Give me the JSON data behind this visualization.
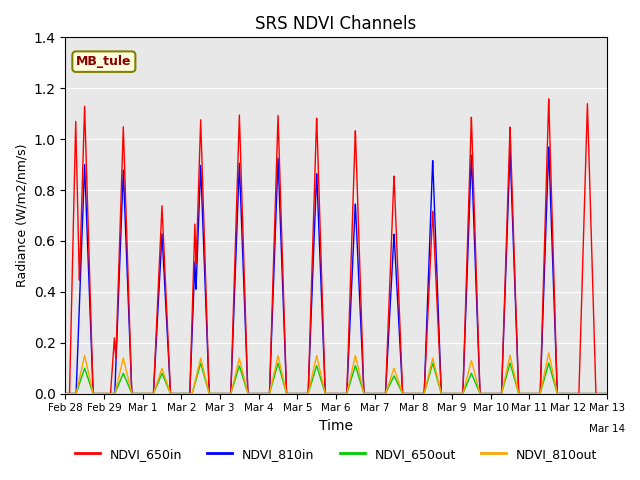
{
  "title": "SRS NDVI Channels",
  "xlabel": "Time",
  "ylabel": "Radiance (W/m2/nm/s)",
  "annotation": "MB_tule",
  "ylim": [
    0,
    1.4
  ],
  "colors": {
    "NDVI_650in": "#FF0000",
    "NDVI_810in": "#0000FF",
    "NDVI_650out": "#00CC00",
    "NDVI_810out": "#FFA500"
  },
  "legend_labels": [
    "NDVI_650in",
    "NDVI_810in",
    "NDVI_650out",
    "NDVI_810out"
  ],
  "background_color": "#E8E8E8",
  "xtick_labels": [
    "Feb 28",
    "Feb 29",
    "Mar 1",
    "Mar 2",
    "Mar 3",
    "Mar 4",
    "Mar 5",
    "Mar 6",
    "Mar 7",
    "Mar 8",
    "Mar 9",
    "Mar 10",
    "Mar 11",
    "Mar 12",
    "Mar 13",
    "Mar 14"
  ],
  "day_peaks_650in": [
    1.13,
    1.05,
    0.74,
    1.08,
    1.1,
    1.1,
    1.09,
    1.04,
    0.86,
    0.72,
    1.09,
    1.05,
    1.16,
    1.14
  ],
  "day_peaks_810in": [
    0.9,
    0.88,
    0.63,
    0.9,
    0.91,
    0.93,
    0.87,
    0.75,
    0.63,
    0.92,
    0.94,
    0.96,
    0.97
  ],
  "day_peaks_650out": [
    0.1,
    0.08,
    0.08,
    0.12,
    0.11,
    0.12,
    0.11,
    0.11,
    0.07,
    0.12,
    0.08,
    0.12,
    0.12
  ],
  "day_peaks_810out": [
    0.15,
    0.14,
    0.1,
    0.14,
    0.14,
    0.15,
    0.15,
    0.15,
    0.1,
    0.14,
    0.13,
    0.15,
    0.16
  ]
}
